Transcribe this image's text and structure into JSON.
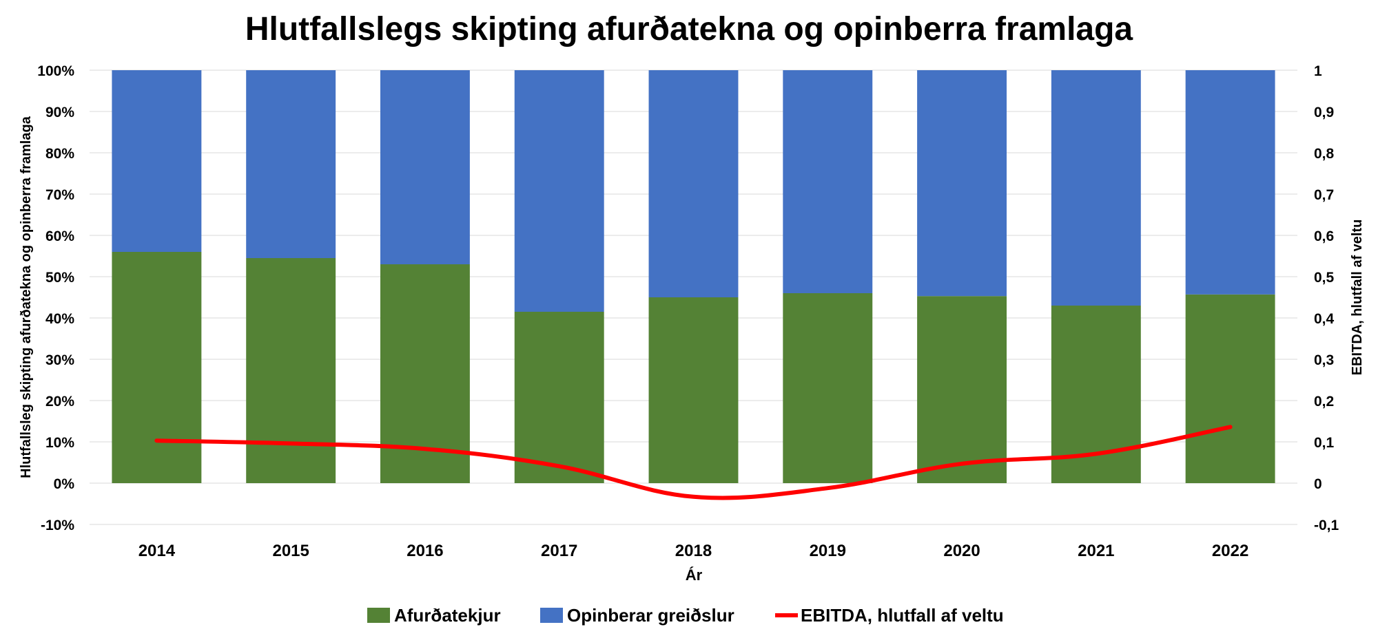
{
  "chart_data": {
    "type": "bar",
    "title": "Hlutfallslegs skipting afurðatekna og opinberra framlaga",
    "xlabel": "Ár",
    "ylabel": "Hlutfallsleg skipting afurðatekna og opinberra framlaga",
    "y2label": "EBITDA, hlutfall af veltu",
    "categories": [
      "2014",
      "2015",
      "2016",
      "2017",
      "2018",
      "2019",
      "2020",
      "2021",
      "2022"
    ],
    "series": [
      {
        "name": "Afurðatekjur",
        "kind": "stacked-bar",
        "color": "#548235",
        "values": [
          0.56,
          0.545,
          0.53,
          0.415,
          0.45,
          0.46,
          0.453,
          0.43,
          0.457
        ]
      },
      {
        "name": "Opinberar greiðslur",
        "kind": "stacked-bar",
        "color": "#4472C4",
        "values": [
          0.44,
          0.455,
          0.47,
          0.585,
          0.55,
          0.54,
          0.547,
          0.57,
          0.543
        ]
      },
      {
        "name": "EBITDA, hlutfall af veltu",
        "kind": "line",
        "axis": "right",
        "color": "#FF0000",
        "values": [
          0.103,
          0.096,
          0.083,
          0.041,
          -0.033,
          -0.012,
          0.047,
          0.071,
          0.136
        ]
      }
    ],
    "ylim": [
      -0.1,
      1.0
    ],
    "yticks": [
      "-10%",
      "0%",
      "10%",
      "20%",
      "30%",
      "40%",
      "50%",
      "60%",
      "70%",
      "80%",
      "90%",
      "100%"
    ],
    "y2lim": [
      -0.1,
      1.0
    ],
    "y2ticks": [
      "-0,1",
      "0",
      "0,1",
      "0,2",
      "0,3",
      "0,4",
      "0,5",
      "0,6",
      "0,7",
      "0,8",
      "0,9",
      "1"
    ],
    "grid": true,
    "legend_position": "bottom"
  }
}
